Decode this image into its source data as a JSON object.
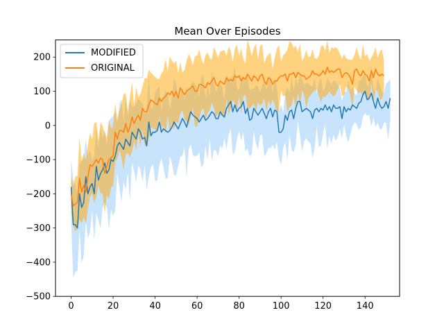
{
  "chart_data": {
    "type": "line",
    "title": "Mean Over Episodes",
    "xlabel": "",
    "ylabel": "",
    "xlim": [
      -7.45,
      156.45
    ],
    "ylim": [
      -500,
      250
    ],
    "xticks": [
      0,
      20,
      40,
      60,
      80,
      100,
      120,
      140
    ],
    "yticks": [
      -500,
      -400,
      -300,
      -200,
      -100,
      0,
      100,
      200
    ],
    "ytick_labels": [
      "−500",
      "−400",
      "−300",
      "−200",
      "−100",
      "0",
      "100",
      "200"
    ],
    "grid": false,
    "legend_position": "upper-left",
    "series": [
      {
        "name": "MODIFIED",
        "color": "#1f77b4",
        "band_color": "#3b99f5",
        "x_start": 0,
        "x_step": 1,
        "mean": [
          -180,
          -290,
          -290,
          -300,
          -200,
          -240,
          -225,
          -150,
          -200,
          -180,
          -170,
          -200,
          -120,
          -160,
          -140,
          -130,
          -110,
          -140,
          -130,
          -100,
          -105,
          -90,
          -60,
          -50,
          -60,
          -70,
          -40,
          -50,
          -60,
          -20,
          -30,
          -40,
          -10,
          -20,
          -40,
          -35,
          -60,
          10,
          -30,
          -20,
          -20,
          -15,
          10,
          -20,
          -10,
          -15,
          -20,
          -15,
          -5,
          10,
          0,
          -10,
          5,
          20,
          10,
          -5,
          20,
          40,
          30,
          25,
          20,
          10,
          20,
          30,
          15,
          20,
          30,
          40,
          35,
          20,
          20,
          40,
          30,
          25,
          50,
          60,
          70,
          40,
          60,
          40,
          50,
          55,
          70,
          35,
          50,
          15,
          20,
          50,
          40,
          30,
          40,
          50,
          35,
          20,
          40,
          50,
          25,
          45,
          40,
          -20,
          -20,
          -10,
          30,
          15,
          40,
          45,
          20,
          50,
          70,
          70,
          40,
          45,
          50,
          45,
          40,
          20,
          45,
          50,
          40,
          50,
          45,
          60,
          45,
          55,
          40,
          60,
          50,
          50,
          55,
          20,
          55,
          40,
          50,
          45,
          60,
          55,
          50,
          65,
          70,
          90,
          100,
          75,
          80,
          95,
          70,
          50,
          80,
          60,
          50,
          55,
          70,
          50,
          80
        ]
      },
      {
        "name": "ORIGINAL",
        "color": "#ff7f0e",
        "band_color": "#ffa500",
        "x_start": 0,
        "x_step": 1,
        "mean": [
          -200,
          -235,
          -230,
          -225,
          -155,
          -195,
          -175,
          -195,
          -150,
          -115,
          -120,
          -110,
          -100,
          -110,
          -95,
          -100,
          -140,
          -120,
          -100,
          -95,
          -90,
          -20,
          -40,
          -15,
          -15,
          -20,
          5,
          -20,
          -5,
          25,
          5,
          20,
          30,
          15,
          50,
          40,
          40,
          60,
          75,
          70,
          65,
          60,
          80,
          70,
          80,
          85,
          95,
          90,
          100,
          85,
          100,
          80,
          110,
          100,
          90,
          100,
          105,
          110,
          115,
          100,
          100,
          120,
          120,
          115,
          110,
          125,
          120,
          130,
          140,
          120,
          115,
          130,
          125,
          120,
          140,
          130,
          135,
          130,
          145,
          140,
          145,
          130,
          140,
          135,
          150,
          140,
          130,
          145,
          140,
          130,
          145,
          150,
          130,
          120,
          140,
          135,
          120,
          130,
          130,
          140,
          145,
          145,
          150,
          130,
          150,
          150,
          155,
          140,
          155,
          150,
          145,
          145,
          135,
          140,
          145,
          160,
          150,
          150,
          145,
          150,
          160,
          150,
          170,
          155,
          160,
          155,
          160,
          165,
          165,
          140,
          150,
          155,
          150,
          140,
          120,
          160,
          165,
          150,
          145,
          160,
          150,
          145,
          130,
          160,
          140,
          165,
          150,
          145,
          150,
          145
        ]
      }
    ]
  }
}
